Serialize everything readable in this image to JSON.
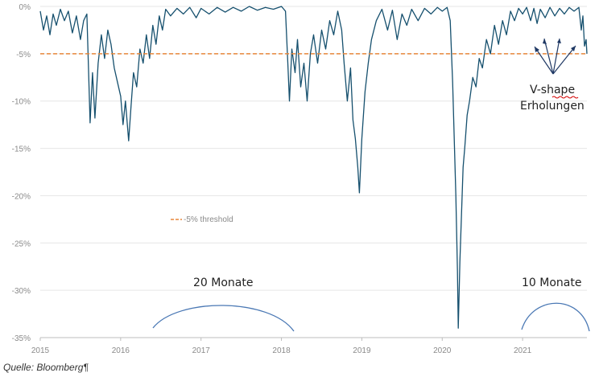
{
  "chart_data": {
    "type": "line",
    "title": "",
    "xlabel": "",
    "ylabel": "",
    "x_ticks": [
      "2015",
      "2016",
      "2017",
      "2018",
      "2019",
      "2020",
      "2021"
    ],
    "y_ticks": [
      "0%",
      "-5%",
      "-10%",
      "-15%",
      "-20%",
      "-25%",
      "-30%",
      "-35%"
    ],
    "y_tick_values": [
      0,
      -5,
      -10,
      -15,
      -20,
      -25,
      -30,
      -35
    ],
    "xlim": [
      2015.0,
      2021.8
    ],
    "ylim": [
      -35,
      0
    ],
    "grid": true,
    "series": [
      {
        "color": "#16506e",
        "points": [
          [
            2015.0,
            -0.5
          ],
          [
            2015.04,
            -2.5
          ],
          [
            2015.08,
            -1.0
          ],
          [
            2015.12,
            -3.0
          ],
          [
            2015.16,
            -0.8
          ],
          [
            2015.2,
            -2.0
          ],
          [
            2015.25,
            -0.3
          ],
          [
            2015.3,
            -1.5
          ],
          [
            2015.35,
            -0.5
          ],
          [
            2015.4,
            -2.8
          ],
          [
            2015.45,
            -1.0
          ],
          [
            2015.5,
            -3.5
          ],
          [
            2015.54,
            -1.5
          ],
          [
            2015.58,
            -0.8
          ],
          [
            2015.6,
            -6.5
          ],
          [
            2015.62,
            -12.3
          ],
          [
            2015.65,
            -7.0
          ],
          [
            2015.68,
            -11.8
          ],
          [
            2015.72,
            -6.0
          ],
          [
            2015.76,
            -3.0
          ],
          [
            2015.8,
            -5.5
          ],
          [
            2015.84,
            -2.5
          ],
          [
            2015.88,
            -4.0
          ],
          [
            2015.92,
            -6.5
          ],
          [
            2015.96,
            -8.0
          ],
          [
            2016.0,
            -9.5
          ],
          [
            2016.03,
            -12.5
          ],
          [
            2016.06,
            -10.0
          ],
          [
            2016.1,
            -14.2
          ],
          [
            2016.13,
            -10.5
          ],
          [
            2016.16,
            -7.0
          ],
          [
            2016.2,
            -8.5
          ],
          [
            2016.24,
            -4.5
          ],
          [
            2016.28,
            -6.0
          ],
          [
            2016.32,
            -3.0
          ],
          [
            2016.36,
            -5.5
          ],
          [
            2016.4,
            -2.0
          ],
          [
            2016.44,
            -4.0
          ],
          [
            2016.48,
            -1.0
          ],
          [
            2016.52,
            -2.5
          ],
          [
            2016.56,
            -0.3
          ],
          [
            2016.62,
            -1.0
          ],
          [
            2016.7,
            -0.2
          ],
          [
            2016.78,
            -0.8
          ],
          [
            2016.86,
            -0.1
          ],
          [
            2016.94,
            -1.2
          ],
          [
            2017.0,
            -0.2
          ],
          [
            2017.1,
            -0.8
          ],
          [
            2017.2,
            -0.1
          ],
          [
            2017.3,
            -0.6
          ],
          [
            2017.4,
            -0.1
          ],
          [
            2017.5,
            -0.5
          ],
          [
            2017.6,
            0.0
          ],
          [
            2017.7,
            -0.4
          ],
          [
            2017.8,
            -0.1
          ],
          [
            2017.9,
            -0.3
          ],
          [
            2018.0,
            0.0
          ],
          [
            2018.05,
            -0.5
          ],
          [
            2018.08,
            -6.0
          ],
          [
            2018.1,
            -10.0
          ],
          [
            2018.13,
            -4.5
          ],
          [
            2018.17,
            -7.0
          ],
          [
            2018.2,
            -3.5
          ],
          [
            2018.24,
            -8.5
          ],
          [
            2018.28,
            -6.0
          ],
          [
            2018.32,
            -10.0
          ],
          [
            2018.36,
            -5.0
          ],
          [
            2018.4,
            -3.0
          ],
          [
            2018.45,
            -6.0
          ],
          [
            2018.5,
            -2.5
          ],
          [
            2018.55,
            -4.5
          ],
          [
            2018.6,
            -1.5
          ],
          [
            2018.65,
            -3.0
          ],
          [
            2018.7,
            -0.5
          ],
          [
            2018.75,
            -2.5
          ],
          [
            2018.78,
            -6.0
          ],
          [
            2018.82,
            -10.0
          ],
          [
            2018.86,
            -6.5
          ],
          [
            2018.89,
            -12.0
          ],
          [
            2018.92,
            -14.0
          ],
          [
            2018.95,
            -17.0
          ],
          [
            2018.97,
            -19.7
          ],
          [
            2019.0,
            -14.0
          ],
          [
            2019.04,
            -9.0
          ],
          [
            2019.08,
            -6.0
          ],
          [
            2019.12,
            -3.5
          ],
          [
            2019.18,
            -1.5
          ],
          [
            2019.25,
            -0.3
          ],
          [
            2019.32,
            -2.5
          ],
          [
            2019.38,
            -0.4
          ],
          [
            2019.44,
            -3.5
          ],
          [
            2019.5,
            -0.8
          ],
          [
            2019.56,
            -2.0
          ],
          [
            2019.62,
            -0.3
          ],
          [
            2019.7,
            -1.5
          ],
          [
            2019.78,
            -0.2
          ],
          [
            2019.86,
            -0.8
          ],
          [
            2019.94,
            -0.1
          ],
          [
            2020.0,
            -0.5
          ],
          [
            2020.06,
            -0.1
          ],
          [
            2020.1,
            -1.5
          ],
          [
            2020.13,
            -8.0
          ],
          [
            2020.15,
            -14.0
          ],
          [
            2020.17,
            -20.0
          ],
          [
            2020.19,
            -28.0
          ],
          [
            2020.2,
            -34.0
          ],
          [
            2020.22,
            -27.0
          ],
          [
            2020.24,
            -22.0
          ],
          [
            2020.26,
            -17.0
          ],
          [
            2020.28,
            -15.0
          ],
          [
            2020.31,
            -11.5
          ],
          [
            2020.34,
            -10.0
          ],
          [
            2020.38,
            -7.5
          ],
          [
            2020.42,
            -8.5
          ],
          [
            2020.46,
            -5.5
          ],
          [
            2020.5,
            -6.5
          ],
          [
            2020.55,
            -3.5
          ],
          [
            2020.6,
            -5.0
          ],
          [
            2020.65,
            -2.0
          ],
          [
            2020.7,
            -4.0
          ],
          [
            2020.75,
            -1.5
          ],
          [
            2020.8,
            -3.0
          ],
          [
            2020.85,
            -0.5
          ],
          [
            2020.9,
            -1.5
          ],
          [
            2020.95,
            -0.2
          ],
          [
            2021.0,
            -0.8
          ],
          [
            2021.05,
            -0.1
          ],
          [
            2021.1,
            -1.5
          ],
          [
            2021.14,
            -0.2
          ],
          [
            2021.18,
            -1.8
          ],
          [
            2021.22,
            -0.3
          ],
          [
            2021.28,
            -1.2
          ],
          [
            2021.34,
            -0.1
          ],
          [
            2021.4,
            -1.0
          ],
          [
            2021.46,
            -0.2
          ],
          [
            2021.52,
            -0.8
          ],
          [
            2021.58,
            -0.1
          ],
          [
            2021.64,
            -0.5
          ],
          [
            2021.7,
            -0.1
          ],
          [
            2021.73,
            -2.5
          ],
          [
            2021.75,
            -1.0
          ],
          [
            2021.77,
            -4.2
          ],
          [
            2021.79,
            -3.5
          ],
          [
            2021.8,
            -5.0
          ]
        ]
      },
      {
        "name": "-5% threshold",
        "color": "#e8863a",
        "dashed": true,
        "points": [
          [
            2015.0,
            -5
          ],
          [
            2021.8,
            -5
          ]
        ]
      }
    ],
    "legend": {
      "label": "-5% threshold",
      "placement": "middle-left"
    },
    "annotations": {
      "vshape_line1": "V-shape",
      "vshape_line2": "Erholungen",
      "period1": "20 Monate",
      "period2": "10 Monate"
    },
    "source": "Quelle: Bloomberg¶"
  }
}
